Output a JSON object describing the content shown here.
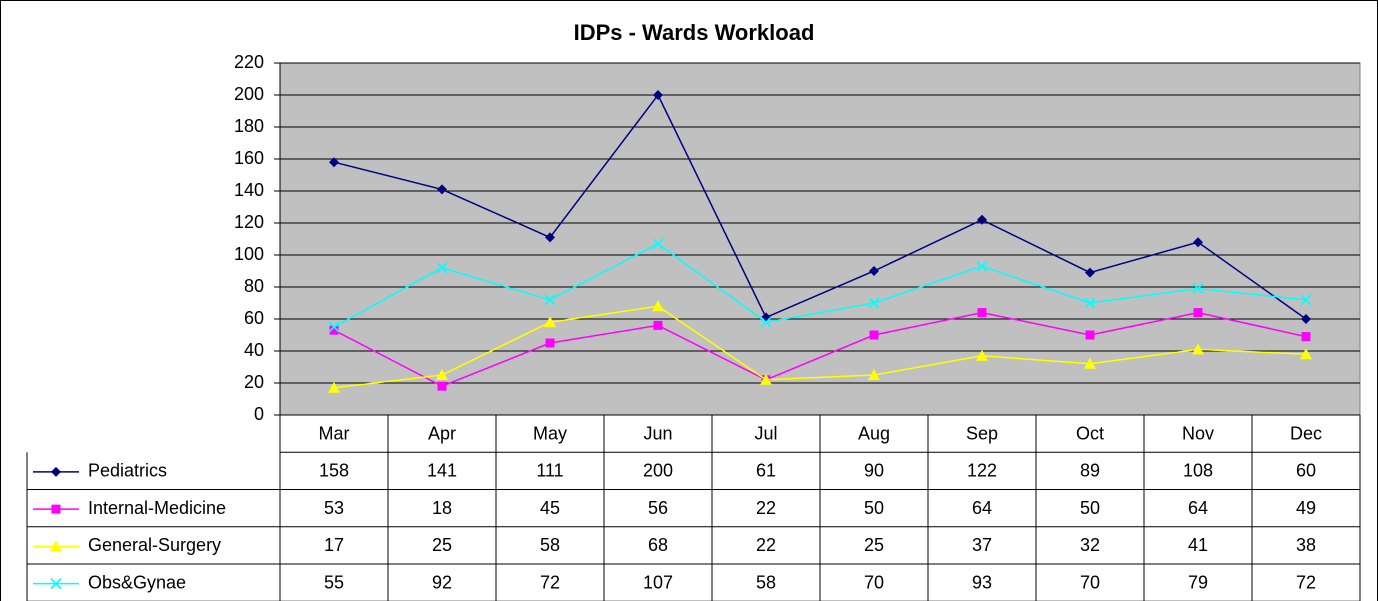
{
  "chart_data": {
    "type": "line",
    "title": "IDPs - Wards Workload",
    "categories": [
      "Mar",
      "Apr",
      "May",
      "Jun",
      "Jul",
      "Aug",
      "Sep",
      "Oct",
      "Nov",
      "Dec"
    ],
    "series": [
      {
        "name": "Pediatrics",
        "color": "#000080",
        "marker": "diamond",
        "values": [
          158,
          141,
          111,
          200,
          61,
          90,
          122,
          89,
          108,
          60
        ]
      },
      {
        "name": "Internal-Medicine",
        "color": "#ff00ff",
        "marker": "square",
        "values": [
          53,
          18,
          45,
          56,
          22,
          50,
          64,
          50,
          64,
          49
        ]
      },
      {
        "name": "General-Surgery",
        "color": "#ffff00",
        "marker": "triangle",
        "values": [
          17,
          25,
          58,
          68,
          22,
          25,
          37,
          32,
          41,
          38
        ]
      },
      {
        "name": "Obs&Gynae",
        "color": "#00ffff",
        "marker": "x",
        "values": [
          55,
          92,
          72,
          107,
          58,
          70,
          93,
          70,
          79,
          72
        ]
      }
    ],
    "ylim": [
      0,
      220
    ],
    "yticks": [
      0,
      20,
      40,
      60,
      80,
      100,
      120,
      140,
      160,
      180,
      200,
      220
    ],
    "grid": true,
    "plot_background": "#c0c0c0"
  }
}
